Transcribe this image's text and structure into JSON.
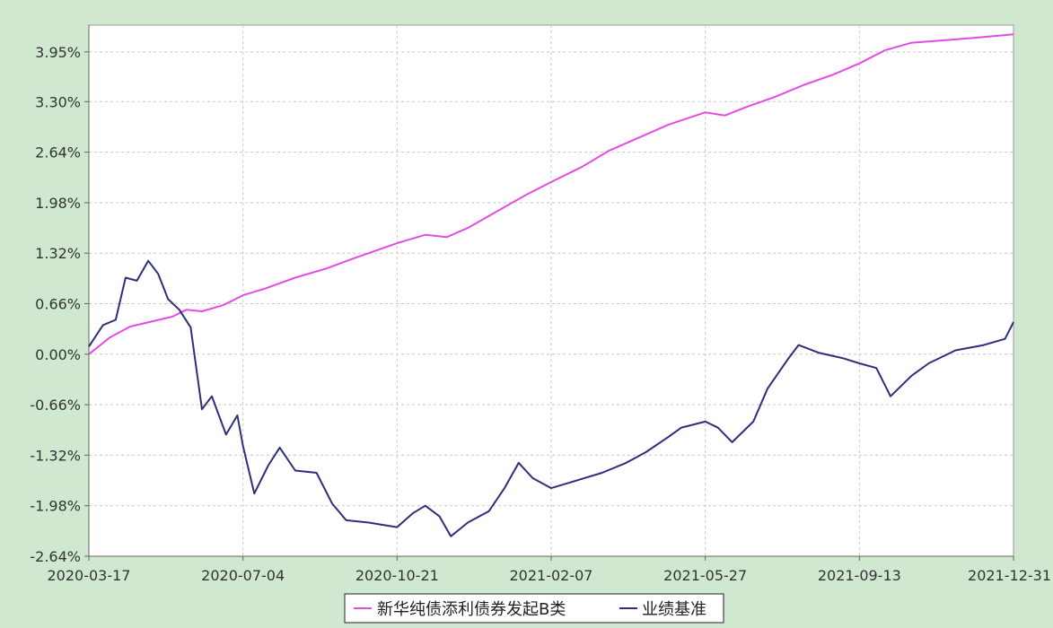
{
  "chart_data": {
    "type": "line",
    "title": "",
    "xlabel": "",
    "ylabel": "",
    "x_ticks": [
      "2020-03-17",
      "2020-07-04",
      "2020-10-21",
      "2021-02-07",
      "2021-05-27",
      "2021-09-13",
      "2021-12-31"
    ],
    "y_ticks": [
      "3.95%",
      "3.30%",
      "2.64%",
      "1.98%",
      "1.32%",
      "0.66%",
      "0.00%",
      "-0.66%",
      "-1.32%",
      "-1.98%",
      "-2.64%"
    ],
    "ylim": [
      -2.64,
      4.3
    ],
    "grid": true,
    "legend_position": "bottom-center",
    "colors": {
      "background": "#cfe8cf",
      "plot_bg": "#ffffff",
      "grid": "#c8c8c8",
      "series_1": "#e34ce3",
      "series_2": "#2e2e7a"
    },
    "series": [
      {
        "name": "新华纯债添利债券发起B类",
        "color": "#e34ce3",
        "points": [
          [
            "2020-03-17",
            0.0
          ],
          [
            "2020-04-01",
            0.22
          ],
          [
            "2020-04-15",
            0.36
          ],
          [
            "2020-05-01",
            0.43
          ],
          [
            "2020-05-15",
            0.49
          ],
          [
            "2020-05-25",
            0.58
          ],
          [
            "2020-06-05",
            0.56
          ],
          [
            "2020-06-20",
            0.64
          ],
          [
            "2020-07-04",
            0.77
          ],
          [
            "2020-07-20",
            0.86
          ],
          [
            "2020-08-10",
            1.0
          ],
          [
            "2020-09-01",
            1.12
          ],
          [
            "2020-09-20",
            1.25
          ],
          [
            "2020-10-21",
            1.45
          ],
          [
            "2020-11-10",
            1.56
          ],
          [
            "2020-11-25",
            1.53
          ],
          [
            "2020-12-10",
            1.65
          ],
          [
            "2021-01-01",
            1.88
          ],
          [
            "2021-01-20",
            2.08
          ],
          [
            "2021-02-07",
            2.25
          ],
          [
            "2021-03-01",
            2.45
          ],
          [
            "2021-03-20",
            2.66
          ],
          [
            "2021-04-10",
            2.83
          ],
          [
            "2021-05-01",
            3.0
          ],
          [
            "2021-05-27",
            3.16
          ],
          [
            "2021-06-10",
            3.12
          ],
          [
            "2021-06-25",
            3.23
          ],
          [
            "2021-07-15",
            3.36
          ],
          [
            "2021-08-05",
            3.52
          ],
          [
            "2021-08-25",
            3.65
          ],
          [
            "2021-09-13",
            3.8
          ],
          [
            "2021-10-01",
            3.97
          ],
          [
            "2021-10-20",
            4.07
          ],
          [
            "2021-11-10",
            4.1
          ],
          [
            "2021-12-01",
            4.13
          ],
          [
            "2021-12-31",
            4.18
          ]
        ]
      },
      {
        "name": "业绩基准",
        "color": "#2e2e7a",
        "points": [
          [
            "2020-03-17",
            0.1
          ],
          [
            "2020-03-27",
            0.38
          ],
          [
            "2020-04-05",
            0.45
          ],
          [
            "2020-04-12",
            1.0
          ],
          [
            "2020-04-20",
            0.96
          ],
          [
            "2020-04-28",
            1.22
          ],
          [
            "2020-05-05",
            1.05
          ],
          [
            "2020-05-12",
            0.72
          ],
          [
            "2020-05-20",
            0.58
          ],
          [
            "2020-05-28",
            0.35
          ],
          [
            "2020-06-05",
            -0.72
          ],
          [
            "2020-06-12",
            -0.55
          ],
          [
            "2020-06-22",
            -1.05
          ],
          [
            "2020-06-30",
            -0.8
          ],
          [
            "2020-07-04",
            -1.2
          ],
          [
            "2020-07-12",
            -1.82
          ],
          [
            "2020-07-22",
            -1.45
          ],
          [
            "2020-07-30",
            -1.22
          ],
          [
            "2020-08-10",
            -1.52
          ],
          [
            "2020-08-25",
            -1.55
          ],
          [
            "2020-09-05",
            -1.95
          ],
          [
            "2020-09-15",
            -2.17
          ],
          [
            "2020-10-01",
            -2.2
          ],
          [
            "2020-10-21",
            -2.26
          ],
          [
            "2020-11-01",
            -2.08
          ],
          [
            "2020-11-10",
            -1.98
          ],
          [
            "2020-11-20",
            -2.12
          ],
          [
            "2020-11-28",
            -2.38
          ],
          [
            "2020-12-10",
            -2.2
          ],
          [
            "2020-12-25",
            -2.05
          ],
          [
            "2021-01-05",
            -1.75
          ],
          [
            "2021-01-15",
            -1.42
          ],
          [
            "2021-01-25",
            -1.62
          ],
          [
            "2021-02-07",
            -1.75
          ],
          [
            "2021-02-25",
            -1.65
          ],
          [
            "2021-03-15",
            -1.55
          ],
          [
            "2021-04-01",
            -1.42
          ],
          [
            "2021-04-15",
            -1.28
          ],
          [
            "2021-05-01",
            -1.08
          ],
          [
            "2021-05-10",
            -0.96
          ],
          [
            "2021-05-27",
            -0.88
          ],
          [
            "2021-06-05",
            -0.96
          ],
          [
            "2021-06-15",
            -1.15
          ],
          [
            "2021-06-30",
            -0.88
          ],
          [
            "2021-07-10",
            -0.45
          ],
          [
            "2021-07-25",
            -0.05
          ],
          [
            "2021-08-01",
            0.12
          ],
          [
            "2021-08-15",
            0.02
          ],
          [
            "2021-09-01",
            -0.05
          ],
          [
            "2021-09-13",
            -0.12
          ],
          [
            "2021-09-25",
            -0.18
          ],
          [
            "2021-10-05",
            -0.55
          ],
          [
            "2021-10-20",
            -0.28
          ],
          [
            "2021-11-01",
            -0.12
          ],
          [
            "2021-11-20",
            0.05
          ],
          [
            "2021-12-10",
            0.12
          ],
          [
            "2021-12-25",
            0.2
          ],
          [
            "2021-12-31",
            0.42
          ]
        ]
      }
    ]
  }
}
